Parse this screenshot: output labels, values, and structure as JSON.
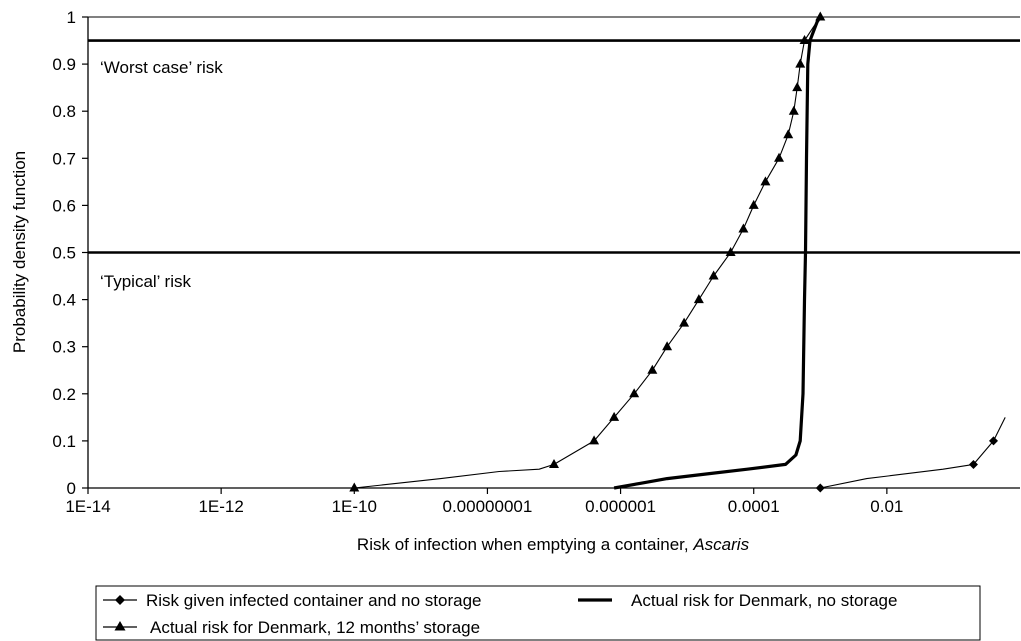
{
  "chart_data": {
    "type": "line",
    "xlabel": "Risk of infection when emptying a container,",
    "xlabel_italic": "Ascaris",
    "ylabel": "Probability density function",
    "xscale": "log",
    "xlim": [
      1e-14,
      1
    ],
    "ylim": [
      0,
      1
    ],
    "x_ticks": [
      {
        "value": 1e-14,
        "label": "1E-14"
      },
      {
        "value": 1e-12,
        "label": "1E-12"
      },
      {
        "value": 1e-10,
        "label": "1E-10"
      },
      {
        "value": 1e-08,
        "label": "0.00000001"
      },
      {
        "value": 1e-06,
        "label": "0.000001"
      },
      {
        "value": 0.0001,
        "label": "0.0001"
      },
      {
        "value": 0.01,
        "label": "0.01"
      }
    ],
    "y_ticks": [
      {
        "value": 0,
        "label": "0"
      },
      {
        "value": 0.1,
        "label": "0.1"
      },
      {
        "value": 0.2,
        "label": "0.2"
      },
      {
        "value": 0.3,
        "label": "0.3"
      },
      {
        "value": 0.4,
        "label": "0.4"
      },
      {
        "value": 0.5,
        "label": "0.5"
      },
      {
        "value": 0.6,
        "label": "0.6"
      },
      {
        "value": 0.7,
        "label": "0.7"
      },
      {
        "value": 0.8,
        "label": "0.8"
      },
      {
        "value": 0.9,
        "label": "0.9"
      },
      {
        "value": 1,
        "label": "1"
      }
    ],
    "grid": false,
    "legend_placement": "bottom",
    "reference_lines": [
      {
        "y": 0.95,
        "label": "‘Worst case’ risk"
      },
      {
        "y": 0.5,
        "label": "‘Typical’ risk"
      }
    ],
    "series": [
      {
        "name": "Risk given infected container and no storage",
        "marker": "diamond",
        "line_width": "thin",
        "points": [
          [
            0.001,
            0
          ],
          [
            0.005,
            0.02
          ],
          [
            0.07,
            0.04
          ],
          [
            0.2,
            0.05
          ],
          [
            0.4,
            0.1
          ],
          [
            0.6,
            0.15
          ]
        ],
        "marked_points": [
          [
            0.001,
            0
          ],
          [
            0.2,
            0.05
          ],
          [
            0.4,
            0.1
          ]
        ]
      },
      {
        "name": "Actual risk for Denmark, no storage",
        "marker": "none",
        "line_width": "thick",
        "points": [
          [
            8e-07,
            0
          ],
          [
            2e-06,
            0.01
          ],
          [
            5e-06,
            0.02
          ],
          [
            2e-05,
            0.03
          ],
          [
            8e-05,
            0.04
          ],
          [
            0.0003,
            0.05
          ],
          [
            0.00043,
            0.07
          ],
          [
            0.0005,
            0.1
          ],
          [
            0.00055,
            0.2
          ],
          [
            0.00058,
            0.4
          ],
          [
            0.0006,
            0.5
          ],
          [
            0.00062,
            0.7
          ],
          [
            0.00065,
            0.9
          ],
          [
            0.0007,
            0.95
          ],
          [
            0.0009,
            0.99
          ],
          [
            0.001,
            1
          ]
        ]
      },
      {
        "name": "Actual risk for Denmark, 12 months’ storage",
        "marker": "triangle",
        "line_width": "thin",
        "points": [
          [
            1e-10,
            0
          ],
          [
            2e-09,
            0.02
          ],
          [
            1.5e-08,
            0.035
          ],
          [
            6e-08,
            0.04
          ],
          [
            1e-07,
            0.05
          ],
          [
            4e-07,
            0.1
          ],
          [
            8e-07,
            0.15
          ],
          [
            1.6e-06,
            0.2
          ],
          [
            3e-06,
            0.25
          ],
          [
            5e-06,
            0.3
          ],
          [
            9e-06,
            0.35
          ],
          [
            1.5e-05,
            0.4
          ],
          [
            2.5e-05,
            0.45
          ],
          [
            4.5e-05,
            0.5
          ],
          [
            7e-05,
            0.55
          ],
          [
            0.0001,
            0.6
          ],
          [
            0.00015,
            0.65
          ],
          [
            0.00024,
            0.7
          ],
          [
            0.00033,
            0.75
          ],
          [
            0.0004,
            0.8
          ],
          [
            0.00045,
            0.85
          ],
          [
            0.0005,
            0.9
          ],
          [
            0.00053,
            0.92
          ],
          [
            0.00058,
            0.95
          ],
          [
            0.0008,
            0.98
          ],
          [
            0.001,
            1
          ]
        ],
        "marked_points": [
          [
            1e-10,
            0
          ],
          [
            1e-07,
            0.05
          ],
          [
            4e-07,
            0.1
          ],
          [
            8e-07,
            0.15
          ],
          [
            1.6e-06,
            0.2
          ],
          [
            3e-06,
            0.25
          ],
          [
            5e-06,
            0.3
          ],
          [
            9e-06,
            0.35
          ],
          [
            1.5e-05,
            0.4
          ],
          [
            2.5e-05,
            0.45
          ],
          [
            4.5e-05,
            0.5
          ],
          [
            7e-05,
            0.55
          ],
          [
            0.0001,
            0.6
          ],
          [
            0.00015,
            0.65
          ],
          [
            0.00024,
            0.7
          ],
          [
            0.00033,
            0.75
          ],
          [
            0.0004,
            0.8
          ],
          [
            0.00045,
            0.85
          ],
          [
            0.0005,
            0.9
          ],
          [
            0.00058,
            0.95
          ],
          [
            0.001,
            1
          ]
        ]
      }
    ]
  }
}
